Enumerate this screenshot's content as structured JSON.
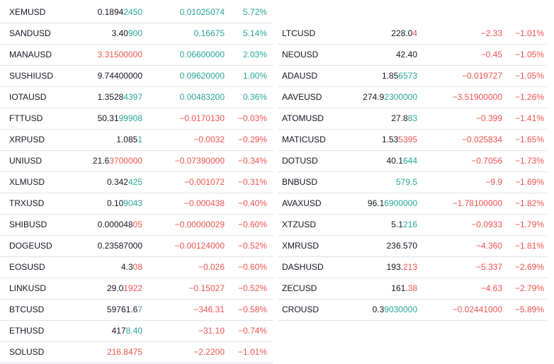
{
  "colors": {
    "up": "#26a69a",
    "down": "#ef5350",
    "text": "#131722"
  },
  "left": [
    {
      "symbol": "XEMUSD",
      "last_a": "0.1894",
      "last_b": "2450",
      "last_dir": "up",
      "change": "0.01025074",
      "change_pct": "5.72%",
      "dir": "up"
    },
    {
      "symbol": "SANDUSD",
      "last_a": "3.40",
      "last_b": "900",
      "last_dir": "up",
      "change": "0.16675",
      "change_pct": "5.14%",
      "dir": "up"
    },
    {
      "symbol": "MANAUSD",
      "last_a": "",
      "last_b": "3.31500000",
      "last_dir": "dn",
      "change": "0.06600000",
      "change_pct": "2.03%",
      "dir": "up"
    },
    {
      "symbol": "SUSHIUSD",
      "last_a": "9.74400000",
      "last_b": "",
      "last_dir": "up",
      "change": "0.09620000",
      "change_pct": "1.00%",
      "dir": "up"
    },
    {
      "symbol": "IOTAUSD",
      "last_a": "1.3528",
      "last_b": "4397",
      "last_dir": "up",
      "change": "0.00483200",
      "change_pct": "0.36%",
      "dir": "up"
    },
    {
      "symbol": "FTTUSD",
      "last_a": "50.31",
      "last_b": "99908",
      "last_dir": "up",
      "change": "−0.0170130",
      "change_pct": "−0.03%",
      "dir": "dn"
    },
    {
      "symbol": "XRPUSD",
      "last_a": "1.085",
      "last_b": "1",
      "last_dir": "up",
      "change": "−0.0032",
      "change_pct": "−0.29%",
      "dir": "dn"
    },
    {
      "symbol": "UNIUSD",
      "last_a": "21.6",
      "last_b": "3700000",
      "last_dir": "dn",
      "change": "−0.07390000",
      "change_pct": "−0.34%",
      "dir": "dn"
    },
    {
      "symbol": "XLMUSD",
      "last_a": "0.342",
      "last_b": "425",
      "last_dir": "up",
      "change": "−0.001072",
      "change_pct": "−0.31%",
      "dir": "dn"
    },
    {
      "symbol": "TRXUSD",
      "last_a": "0.10",
      "last_b": "9043",
      "last_dir": "up",
      "change": "−0.000438",
      "change_pct": "−0.40%",
      "dir": "dn"
    },
    {
      "symbol": "SHIBUSD",
      "last_a": "0.000048",
      "last_b": "05",
      "last_dir": "dn",
      "change": "−0.00000029",
      "change_pct": "−0.60%",
      "dir": "dn"
    },
    {
      "symbol": "DOGEUSD",
      "last_a": "0.23587000",
      "last_b": "",
      "last_dir": "dn",
      "change": "−0.00124000",
      "change_pct": "−0.52%",
      "dir": "dn"
    },
    {
      "symbol": "EOSUSD",
      "last_a": "4.3",
      "last_b": "08",
      "last_dir": "dn",
      "change": "−0.026",
      "change_pct": "−0.60%",
      "dir": "dn"
    },
    {
      "symbol": "LINKUSD",
      "last_a": "29.0",
      "last_b": "1922",
      "last_dir": "dn",
      "change": "−0.15027",
      "change_pct": "−0.52%",
      "dir": "dn"
    },
    {
      "symbol": "BTCUSD",
      "last_a": "59761.6",
      "last_b": "7",
      "last_dir": "up",
      "change": "−346.31",
      "change_pct": "−0.58%",
      "dir": "dn"
    },
    {
      "symbol": "ETHUSD",
      "last_a": "417",
      "last_b": "8.40",
      "last_dir": "up",
      "change": "−31.10",
      "change_pct": "−0.74%",
      "dir": "dn"
    },
    {
      "symbol": "SOLUSD",
      "last_a": "",
      "last_b": "216.8475",
      "last_dir": "dn",
      "change": "−2.2200",
      "change_pct": "−1.01%",
      "dir": "dn"
    }
  ],
  "right": [
    {
      "symbol": "LTCUSD",
      "last_a": "228.0",
      "last_b": "4",
      "last_dir": "dn",
      "change": "−2.33",
      "change_pct": "−1.01%",
      "dir": "dn"
    },
    {
      "symbol": "NEOUSD",
      "last_a": "42.40",
      "last_b": "",
      "last_dir": "dn",
      "change": "−0.45",
      "change_pct": "−1.05%",
      "dir": "dn"
    },
    {
      "symbol": "ADAUSD",
      "last_a": "1.85",
      "last_b": "6573",
      "last_dir": "up",
      "change": "−0.019727",
      "change_pct": "−1.05%",
      "dir": "dn"
    },
    {
      "symbol": "AAVEUSD",
      "last_a": "274.9",
      "last_b": "2300000",
      "last_dir": "up",
      "change": "−3.51900000",
      "change_pct": "−1.26%",
      "dir": "dn"
    },
    {
      "symbol": "ATOMUSD",
      "last_a": "27.8",
      "last_b": "83",
      "last_dir": "up",
      "change": "−0.399",
      "change_pct": "−1.41%",
      "dir": "dn"
    },
    {
      "symbol": "MATICUSD",
      "last_a": "1.53",
      "last_b": "5395",
      "last_dir": "dn",
      "change": "−0.025834",
      "change_pct": "−1.65%",
      "dir": "dn"
    },
    {
      "symbol": "DOTUSD",
      "last_a": "40.1",
      "last_b": "644",
      "last_dir": "up",
      "change": "−0.7056",
      "change_pct": "−1.73%",
      "dir": "dn"
    },
    {
      "symbol": "BNBUSD",
      "last_a": "",
      "last_b": "579.5",
      "last_dir": "up",
      "change": "−9.9",
      "change_pct": "−1.69%",
      "dir": "dn"
    },
    {
      "symbol": "AVAXUSD",
      "last_a": "96.1",
      "last_b": "6900000",
      "last_dir": "up",
      "change": "−1.78100000",
      "change_pct": "−1.82%",
      "dir": "dn"
    },
    {
      "symbol": "XTZUSD",
      "last_a": "5.1",
      "last_b": "216",
      "last_dir": "up",
      "change": "−0.0933",
      "change_pct": "−1.79%",
      "dir": "dn"
    },
    {
      "symbol": "XMRUSD",
      "last_a": "236.570",
      "last_b": "",
      "last_dir": "dn",
      "change": "−4.360",
      "change_pct": "−1.81%",
      "dir": "dn"
    },
    {
      "symbol": "DASHUSD",
      "last_a": "193.",
      "last_b": "213",
      "last_dir": "dn",
      "change": "−5.337",
      "change_pct": "−2.69%",
      "dir": "dn"
    },
    {
      "symbol": "ZECUSD",
      "last_a": "161.",
      "last_b": "38",
      "last_dir": "dn",
      "change": "−4.63",
      "change_pct": "−2.79%",
      "dir": "dn"
    },
    {
      "symbol": "CROUSD",
      "last_a": "0.3",
      "last_b": "9030000",
      "last_dir": "up",
      "change": "−0.02441000",
      "change_pct": "−5.89%",
      "dir": "dn"
    }
  ]
}
